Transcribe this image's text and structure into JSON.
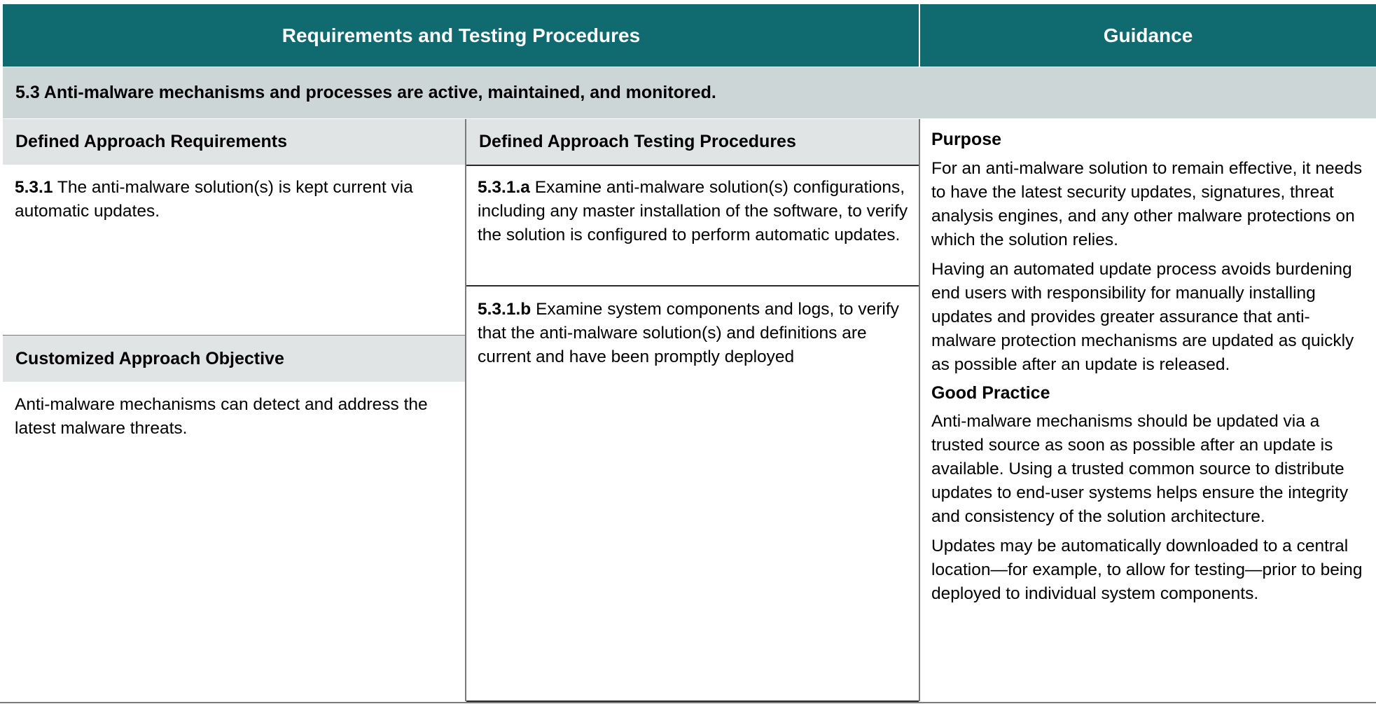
{
  "header": {
    "left_title": "Requirements and Testing Procedures",
    "right_title": "Guidance"
  },
  "section": {
    "title": "5.3 Anti-malware mechanisms and processes are active, maintained, and monitored."
  },
  "defined_requirements": {
    "heading": "Defined Approach Requirements",
    "req_id": "5.3.1",
    "req_text": " The anti-malware solution(s) is kept current via automatic updates."
  },
  "customized": {
    "heading": "Customized Approach Objective",
    "text": "Anti-malware mechanisms can detect and address the latest malware threats."
  },
  "testing": {
    "heading": "Defined Approach Testing Procedures",
    "items": [
      {
        "id": "5.3.1.a",
        "text": " Examine anti-malware solution(s) configurations, including any master installation of the software, to verify the solution is configured to perform automatic updates."
      },
      {
        "id": "5.3.1.b",
        "text": " Examine system components and logs, to verify that the anti-malware solution(s) and definitions are current and have been promptly deployed"
      }
    ]
  },
  "guidance": {
    "purpose_heading": "Purpose",
    "purpose_paragraphs": [
      "For an anti-malware solution to remain effective, it needs to have the latest security updates, signatures, threat analysis engines, and any other malware protections on which the solution relies.",
      "Having an automated update process avoids burdening end users with responsibility for manually installing updates and provides greater assurance that anti-malware protection mechanisms are updated as quickly as possible after an update is released."
    ],
    "good_practice_heading": "Good Practice",
    "good_practice_paragraphs": [
      "Anti-malware mechanisms should be updated via a trusted source as soon as possible after an update is available. Using a trusted common source to distribute updates to end-user systems helps ensure the integrity and consistency of the solution architecture.",
      "Updates may be automatically downloaded to a central location—for example, to allow for testing—prior to being deployed to individual system components."
    ]
  },
  "colors": {
    "header_bg": "#0f6b70",
    "section_bg": "#cdd6d7",
    "subheading_bg": "#e1e4e5"
  }
}
